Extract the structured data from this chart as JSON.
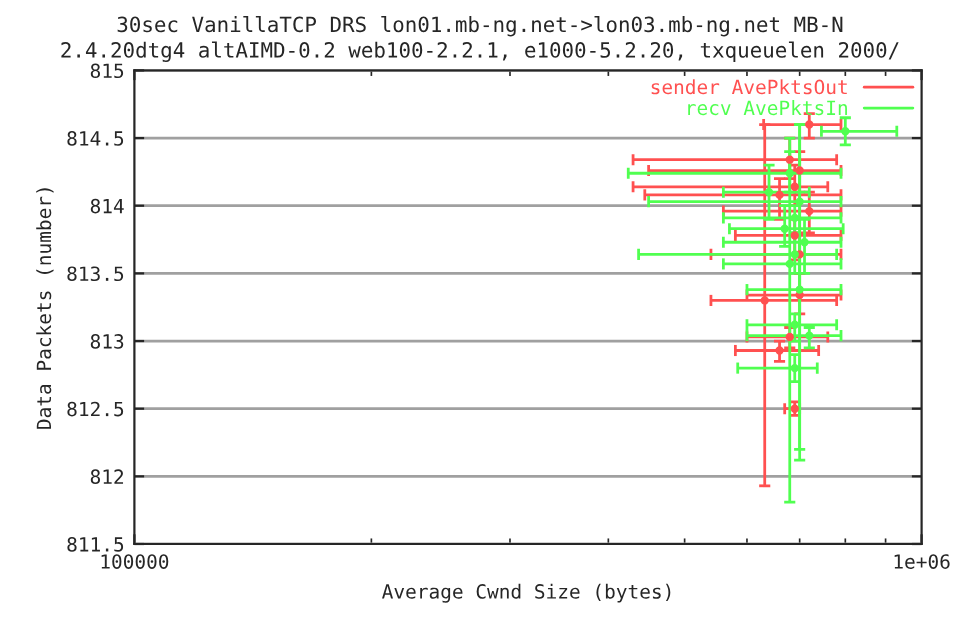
{
  "chart_data": {
    "type": "scatter",
    "title": "30sec VanillaTCP DRS lon01.mb-ng.net->lon03.mb-ng.net MB-N",
    "subtitle": "2.4.20dtg4 altAIMD-0.2 web100-2.2.1, e1000-5.2.20, txqueuelen 2000/",
    "xlabel": "Average Cwnd Size (bytes)",
    "ylabel": "Data Packets (number)",
    "log": "x",
    "xlim": [
      100000,
      1000000
    ],
    "xticks": [
      {
        "value": 100000,
        "label": "100000"
      },
      {
        "value": 1000000,
        "label": "1e+06"
      }
    ],
    "ylim": [
      811.5,
      815
    ],
    "yticks": [
      {
        "value": 811.5,
        "label": "811.5"
      },
      812,
      {
        "value": 812.5,
        "label": "812.5"
      },
      813,
      {
        "value": 813.5,
        "label": "813.5"
      },
      814,
      {
        "value": 814.5,
        "label": "814.5"
      },
      815
    ],
    "grid": "y",
    "legend": "top right",
    "marker": "circle",
    "series": [
      {
        "name": "sender AvePktsOut",
        "color": "#ff5050",
        "x": [
          680000,
          700000,
          690000,
          660000,
          720000,
          690000,
          700000,
          632000,
          700000,
          680000,
          660000,
          720000,
          690000
        ],
        "values": [
          814.34,
          814.26,
          814.14,
          814.08,
          813.96,
          813.78,
          813.64,
          813.3,
          813.34,
          813.03,
          812.93,
          814.6,
          812.5
        ],
        "xerrors": [
          [
            430000,
            780000
          ],
          [
            450000,
            790000
          ],
          [
            430000,
            760000
          ],
          [
            445000,
            790000
          ],
          [
            560000,
            790000
          ],
          [
            580000,
            790000
          ],
          [
            540000,
            790000
          ],
          [
            540000,
            780000
          ],
          [
            600000,
            790000
          ],
          [
            600000,
            760000
          ],
          [
            580000,
            740000
          ],
          [
            630000,
            790000
          ],
          [
            670000,
            700000
          ]
        ],
        "errors": [
          [
            814.2,
            814.5
          ],
          [
            814.1,
            814.4
          ],
          [
            814.0,
            814.3
          ],
          [
            813.9,
            814.2
          ],
          [
            813.8,
            814.1
          ],
          [
            813.6,
            813.9
          ],
          [
            813.5,
            813.8
          ],
          [
            811.93,
            814.6
          ],
          [
            813.2,
            813.5
          ],
          [
            812.95,
            813.1
          ],
          [
            812.85,
            813.0
          ],
          [
            814.5,
            814.68
          ],
          [
            812.45,
            812.55
          ]
        ]
      },
      {
        "name": "recv AvePktsIn",
        "color": "#50ff50",
        "x": [
          800000,
          680000,
          700000,
          690000,
          670000,
          710000,
          690000,
          680000,
          700000,
          690000,
          720000,
          690000,
          640000
        ],
        "values": [
          814.55,
          814.24,
          814.03,
          813.91,
          813.83,
          813.73,
          813.64,
          813.57,
          813.38,
          813.12,
          813.04,
          812.8,
          814.1
        ],
        "xerrors": [
          [
            746000,
            930000
          ],
          [
            424000,
            790000
          ],
          [
            450000,
            790000
          ],
          [
            560000,
            790000
          ],
          [
            570000,
            795000
          ],
          [
            560000,
            790000
          ],
          [
            437000,
            780000
          ],
          [
            560000,
            790000
          ],
          [
            600000,
            790000
          ],
          [
            600000,
            780000
          ],
          [
            600000,
            790000
          ],
          [
            584000,
            737000
          ],
          [
            560000,
            720000
          ]
        ],
        "errors": [
          [
            814.45,
            814.65
          ],
          [
            814.1,
            814.4
          ],
          [
            812.12,
            814.6
          ],
          [
            813.8,
            814.0
          ],
          [
            813.7,
            814.0
          ],
          [
            813.5,
            813.9
          ],
          [
            813.5,
            813.8
          ],
          [
            811.81,
            814.5
          ],
          [
            812.2,
            814.6
          ],
          [
            813.0,
            813.2
          ],
          [
            812.95,
            813.1
          ],
          [
            812.7,
            812.9
          ],
          [
            813.9,
            814.3
          ]
        ]
      }
    ]
  }
}
